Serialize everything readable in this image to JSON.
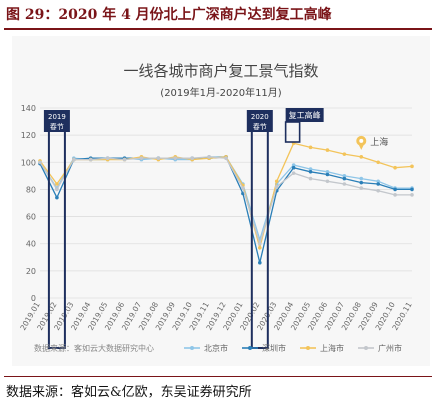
{
  "figure_title": "图 29：2020 年 4 月份北上广深商户达到复工高峰",
  "source_note": "数据来源：客如云&亿欧，东吴证券研究所",
  "chart_data": {
    "type": "line",
    "title": "一线各城市商户复工景气指数",
    "subtitle": "(2019年1月-2020年11月)",
    "inner_source": "数据来源：客如云大数据研究中心",
    "x": [
      "2019.01",
      "2019.02",
      "2019.03",
      "2019.04",
      "2019.05",
      "2019.06",
      "2019.07",
      "2019.08",
      "2019.09",
      "2019.10",
      "2019.11",
      "2019.12",
      "2020.01",
      "2020.02",
      "2020.03",
      "2020.04",
      "2020.05",
      "2020.06",
      "2020.07",
      "2020.08",
      "2020.09",
      "2020.10",
      "2020.11"
    ],
    "ylim": [
      0,
      140
    ],
    "yticks": [
      0,
      20,
      40,
      60,
      80,
      100,
      120,
      140
    ],
    "grid": true,
    "legend_position": "bottom",
    "series": [
      {
        "name": "北京市",
        "color": "#8fc6e8",
        "values": [
          100,
          81,
          103,
          102,
          102,
          103,
          102,
          103,
          102,
          102,
          104,
          104,
          84,
          43,
          84,
          98,
          95,
          93,
          90,
          88,
          86,
          81,
          81
        ]
      },
      {
        "name": "深圳市",
        "color": "#2a7fb8",
        "values": [
          99,
          74,
          102,
          103,
          103,
          103,
          103,
          103,
          103,
          103,
          103,
          104,
          77,
          26,
          79,
          96,
          93,
          91,
          88,
          85,
          84,
          80,
          80
        ]
      },
      {
        "name": "上海市",
        "color": "#f3c45a",
        "values": [
          101,
          84,
          102,
          102,
          102,
          102,
          104,
          102,
          104,
          102,
          103,
          104,
          83,
          37,
          86,
          114,
          111,
          109,
          106,
          104,
          100,
          96,
          97
        ]
      },
      {
        "name": "广州市",
        "color": "#c3c7cc",
        "values": [
          100,
          80,
          102,
          102,
          103,
          102,
          103,
          103,
          103,
          103,
          104,
          103,
          81,
          40,
          82,
          92,
          88,
          86,
          84,
          81,
          79,
          76,
          76
        ]
      }
    ],
    "annotations": [
      {
        "text": "2019\n春节"
      },
      {
        "text": "2020\n春节"
      },
      {
        "text": "复工高峰"
      },
      {
        "text": "上海"
      }
    ]
  }
}
